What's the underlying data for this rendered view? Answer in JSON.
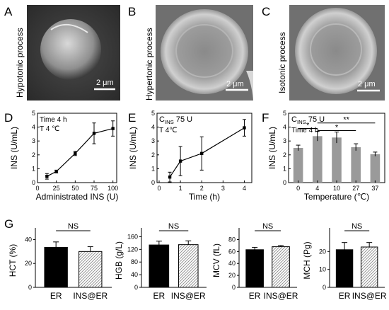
{
  "colors": {
    "line": "#000000",
    "gray_bar": "#9a9a9a",
    "black_bar": "#000000",
    "hatch": "#bdbdbd"
  },
  "micrographs": [
    {
      "letter": "A",
      "side_label": "Hypotonic process",
      "scale": "2 μm",
      "shape": "sphere"
    },
    {
      "letter": "B",
      "side_label": "Hypertonic process",
      "scale": "2 μm",
      "shape": "disc"
    },
    {
      "letter": "C",
      "side_label": "Isotonic process",
      "scale": "2 μm",
      "shape": "disc"
    }
  ],
  "chart_data": [
    {
      "letter": "D",
      "type": "line",
      "notes": [
        "Time 4 h",
        "T  4 ℃"
      ],
      "xlabel": "Administrated INS (U)",
      "ylabel": "INS (U/mL)",
      "xlim": [
        0,
        105
      ],
      "ylim": [
        0,
        5
      ],
      "xticks": [
        0,
        25,
        50,
        75,
        100
      ],
      "yticks": [
        0,
        1,
        2,
        3,
        4,
        5
      ],
      "x": [
        12.5,
        25,
        50,
        75,
        100
      ],
      "y": [
        0.45,
        0.8,
        2.1,
        3.55,
        3.9
      ],
      "err": [
        0.2,
        0.1,
        0.15,
        0.75,
        0.55
      ]
    },
    {
      "letter": "E",
      "type": "line",
      "notes_html": true,
      "note_c_main": "C",
      "note_c_sub": "INS",
      "note_c_rest": " 75 U",
      "note_t": "T  4℃",
      "xlabel": "Time (h)",
      "ylabel": "INS (U/mL)",
      "xlim": [
        -0.1,
        4.35
      ],
      "ylim": [
        0,
        5
      ],
      "xticks": [
        0,
        1,
        2,
        3,
        4
      ],
      "yticks": [
        0,
        1,
        2,
        3,
        4,
        5
      ],
      "x": [
        0.5,
        1,
        2,
        4
      ],
      "y": [
        0.4,
        1.55,
        2.1,
        3.95
      ],
      "err": [
        0.35,
        1.05,
        1.2,
        0.6
      ]
    },
    {
      "letter": "F",
      "type": "bar",
      "note_c_main": "C",
      "note_c_sub": "INS",
      "note_c_rest": " 75 U",
      "note_t": "Time 4 h",
      "categories": [
        "0",
        "4",
        "10",
        "27",
        "37"
      ],
      "values": [
        2.5,
        3.35,
        3.25,
        2.55,
        2.05
      ],
      "err": [
        0.2,
        0.35,
        0.4,
        0.25,
        0.15
      ],
      "xlabel": "Temperature (℃)",
      "ylabel": "INS (U/mL)",
      "ylim": [
        0,
        5
      ],
      "yticks": [
        0,
        1,
        2,
        3,
        4,
        5
      ],
      "significance": [
        {
          "from": 0,
          "to": 1,
          "label": "*"
        },
        {
          "from": 1,
          "to": 3,
          "label": "*"
        },
        {
          "from": 1,
          "to": 4,
          "label": "**"
        }
      ]
    },
    {
      "letter": "G",
      "type": "bar",
      "categories": [
        "ER",
        "INS@ER"
      ],
      "ylabel": "HCT (%)",
      "ylim": [
        0,
        45
      ],
      "yticks": [
        0,
        20,
        40
      ],
      "values": [
        33.5,
        30
      ],
      "err": [
        4.5,
        4
      ],
      "sig": "NS"
    },
    {
      "type": "bar",
      "categories": [
        "ER",
        "INS@ER"
      ],
      "ylabel": "HGB (g/L)",
      "ylim": [
        0,
        170
      ],
      "yticks": [
        0,
        40,
        80,
        120,
        160
      ],
      "values": [
        134,
        135
      ],
      "err": [
        12,
        12
      ],
      "sig": "NS"
    },
    {
      "type": "bar",
      "categories": [
        "ER",
        "INS@ER"
      ],
      "ylabel": "MCV (fL)",
      "ylim": [
        0,
        90
      ],
      "yticks": [
        0,
        20,
        40,
        60,
        80
      ],
      "values": [
        63,
        68
      ],
      "err": [
        4,
        2
      ],
      "sig": "NS"
    },
    {
      "type": "bar",
      "categories": [
        "ER",
        "INS@ER"
      ],
      "ylabel": "MCH (Pg)",
      "ylim": [
        0,
        30
      ],
      "yticks": [
        0,
        10,
        20
      ],
      "values": [
        21,
        22.5
      ],
      "err": [
        4,
        2.5
      ],
      "sig": "NS"
    }
  ]
}
